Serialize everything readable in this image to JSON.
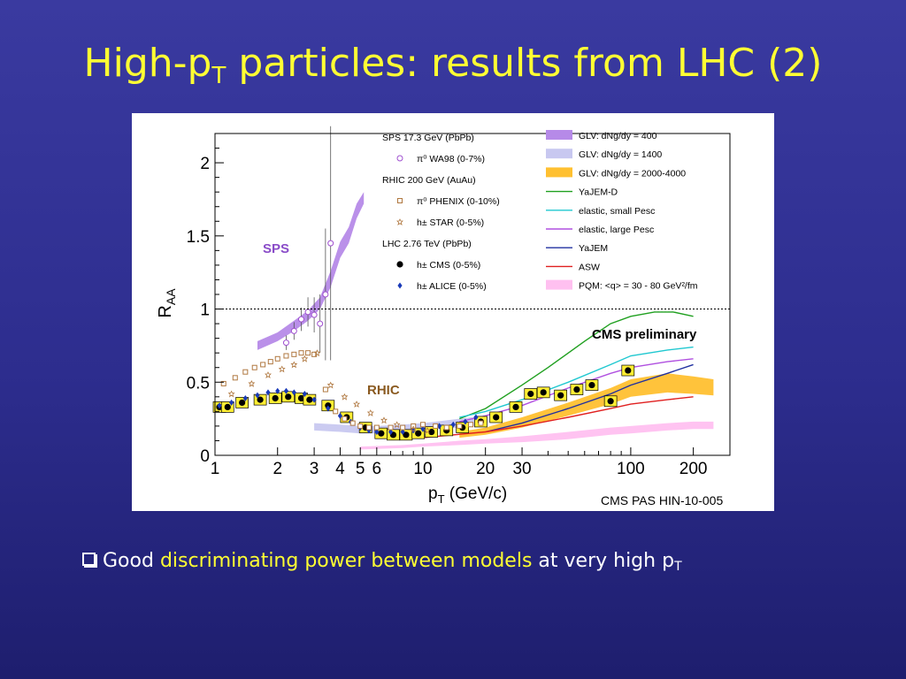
{
  "slide": {
    "title_main": "High-p",
    "title_sub": "T",
    "title_rest": " particles: results from LHC (2)",
    "bullet_prefix": "Good ",
    "bullet_highlight": "discriminating power between models",
    "bullet_suffix": " at very high p",
    "bullet_sub": "T",
    "colors": {
      "title": "#ffff33",
      "highlight": "#ffff33",
      "background": "#2d2d8e"
    }
  },
  "chart_data": {
    "type": "scatter",
    "xscale": "log",
    "xlim": [
      1,
      300
    ],
    "ylim": [
      0,
      2.2
    ],
    "xlabel": "p",
    "xlabel_sub": "T",
    "xlabel_unit": " (GeV/c)",
    "ylabel": "R",
    "ylabel_sub": "AA",
    "xticks": [
      1,
      2,
      3,
      4,
      5,
      6,
      10,
      20,
      30,
      100,
      200
    ],
    "xtick_labels": [
      "1",
      "2",
      "3",
      "4",
      "5",
      "6",
      "10",
      "20",
      "30",
      "100",
      "200"
    ],
    "yticks": [
      0,
      0.5,
      1,
      1.5,
      2
    ],
    "ytick_labels": [
      "0",
      "0.5",
      "1",
      "1.5",
      "2"
    ],
    "reference_line": 1,
    "annotations": {
      "sps": "SPS",
      "rhic": "RHIC",
      "cms_prelim": "CMS preliminary",
      "source": "CMS PAS HIN-10-005"
    },
    "legend_left": [
      {
        "kind": "header",
        "text": "SPS 17.3 GeV (PbPb)"
      },
      {
        "kind": "entry",
        "marker": "open-circle",
        "color": "#a050d0",
        "text": "π⁰  WA98 (0-7%)"
      },
      {
        "kind": "header",
        "text": "RHIC 200 GeV (AuAu)"
      },
      {
        "kind": "entry",
        "marker": "open-square",
        "color": "#b07840",
        "text": "π⁰  PHENIX (0-10%)"
      },
      {
        "kind": "entry",
        "marker": "open-star",
        "color": "#b07840",
        "text": "h±  STAR (0-5%)"
      },
      {
        "kind": "header",
        "text": "LHC 2.76 TeV (PbPb)"
      },
      {
        "kind": "entry",
        "marker": "filled-circle",
        "color": "#000000",
        "text": "h±  CMS (0-5%)"
      },
      {
        "kind": "entry",
        "marker": "diamond",
        "color": "#1a3ab8",
        "text": "h±  ALICE (0-5%)"
      }
    ],
    "legend_right": [
      {
        "kind": "band",
        "color": "#b68ae8",
        "text": "GLV: dNg/dy = 400"
      },
      {
        "kind": "band",
        "color": "#c8c8f0",
        "text": "GLV: dNg/dy = 1400"
      },
      {
        "kind": "band",
        "color": "#ffc030",
        "text": "GLV: dNg/dy = 2000-4000"
      },
      {
        "kind": "line",
        "color": "#20a020",
        "text": "YaJEM-D"
      },
      {
        "kind": "line",
        "color": "#20c8d0",
        "text": "elastic, small Pesc"
      },
      {
        "kind": "line",
        "color": "#b050e0",
        "text": "elastic, large Pesc"
      },
      {
        "kind": "line",
        "color": "#2030a0",
        "text": "YaJEM"
      },
      {
        "kind": "line",
        "color": "#e02020",
        "text": "ASW"
      },
      {
        "kind": "band",
        "color": "#ffc0f0",
        "text": "PQM: <q> = 30 - 80 GeV²/fm"
      }
    ],
    "series": [
      {
        "name": "h± CMS (0-5%)",
        "marker": "filled-circle",
        "color": "#000000",
        "x": [
          1.05,
          1.15,
          1.35,
          1.65,
          1.95,
          2.25,
          2.6,
          2.85,
          3.5,
          4.3,
          5.3,
          6.3,
          7.2,
          8.3,
          9.5,
          11.0,
          13.0,
          15.5,
          19.0,
          22.5,
          28.0,
          33.0,
          38.0,
          46.0,
          55.0,
          65.0,
          80.0,
          97.0
        ],
        "y": [
          0.33,
          0.33,
          0.36,
          0.38,
          0.39,
          0.4,
          0.39,
          0.38,
          0.34,
          0.26,
          0.19,
          0.15,
          0.14,
          0.14,
          0.15,
          0.16,
          0.17,
          0.19,
          0.23,
          0.26,
          0.33,
          0.42,
          0.43,
          0.41,
          0.45,
          0.48,
          0.37,
          0.58
        ]
      },
      {
        "name": "h± ALICE (0-5%)",
        "marker": "diamond",
        "color": "#1a3ab8",
        "x": [
          1.05,
          1.2,
          1.4,
          1.6,
          1.8,
          2.0,
          2.2,
          2.4,
          2.7,
          3.0,
          3.5,
          4.0,
          4.5,
          5.0,
          5.5,
          6.0,
          7.0,
          8.0,
          9.0,
          10.0,
          12.0,
          14.0,
          16.0,
          18.0
        ],
        "y": [
          0.34,
          0.36,
          0.39,
          0.41,
          0.43,
          0.44,
          0.44,
          0.43,
          0.42,
          0.38,
          0.32,
          0.27,
          0.23,
          0.19,
          0.17,
          0.16,
          0.16,
          0.16,
          0.17,
          0.18,
          0.2,
          0.21,
          0.23,
          0.26
        ]
      },
      {
        "name": "π⁰ WA98 (0-7%)",
        "marker": "open-circle",
        "color": "#a050d0",
        "x": [
          2.2,
          2.4,
          2.6,
          2.8,
          3.0,
          3.2,
          3.4,
          3.6
        ],
        "y": [
          0.77,
          0.85,
          0.93,
          0.98,
          0.96,
          0.9,
          1.1,
          1.45
        ],
        "yerr": [
          0.05,
          0.06,
          0.08,
          0.1,
          0.12,
          0.2,
          0.45,
          0.8
        ]
      },
      {
        "name": "π⁰ PHENIX (0-10%)",
        "marker": "open-square",
        "color": "#b07840",
        "x": [
          1.1,
          1.25,
          1.4,
          1.55,
          1.7,
          1.85,
          2.0,
          2.2,
          2.4,
          2.6,
          2.8,
          3.0,
          3.4,
          3.8,
          4.2,
          4.6,
          5.0,
          5.5,
          6.0,
          7.0,
          8.0,
          9.0,
          10.0,
          11.5,
          13.0,
          15.0,
          17.0,
          19.0
        ],
        "y": [
          0.49,
          0.53,
          0.57,
          0.6,
          0.62,
          0.64,
          0.66,
          0.68,
          0.69,
          0.7,
          0.7,
          0.69,
          0.45,
          0.3,
          0.25,
          0.22,
          0.2,
          0.19,
          0.19,
          0.19,
          0.19,
          0.2,
          0.21,
          0.2,
          0.19,
          0.2,
          0.21,
          0.22
        ]
      },
      {
        "name": "h± STAR (0-5%)",
        "marker": "open-star",
        "color": "#b07840",
        "x": [
          1.2,
          1.5,
          1.8,
          2.1,
          2.4,
          2.7,
          3.1,
          3.6,
          4.2,
          4.8,
          5.6,
          6.5,
          7.5,
          9.0,
          10.5
        ],
        "y": [
          0.42,
          0.49,
          0.55,
          0.59,
          0.62,
          0.66,
          0.7,
          0.48,
          0.4,
          0.35,
          0.29,
          0.24,
          0.21,
          0.18,
          0.17
        ]
      }
    ],
    "bands": [
      {
        "name": "GLV: dNg/dy = 400",
        "color": "#b68ae8",
        "x": [
          1.6,
          2.0,
          2.4,
          2.8,
          3.2,
          3.6,
          4.0,
          4.4,
          4.8,
          5.2
        ],
        "ylow": [
          0.72,
          0.78,
          0.85,
          0.92,
          1.0,
          1.15,
          1.35,
          1.45,
          1.62,
          1.72
        ],
        "yhigh": [
          0.78,
          0.84,
          0.92,
          0.99,
          1.08,
          1.26,
          1.46,
          1.56,
          1.72,
          1.8
        ]
      },
      {
        "name": "GLV: dNg/dy = 1400",
        "color": "#c8c8f0",
        "x": [
          3,
          4,
          5,
          6,
          8,
          10,
          15,
          20
        ],
        "ylow": [
          0.17,
          0.16,
          0.15,
          0.15,
          0.16,
          0.17,
          0.19,
          0.21
        ],
        "yhigh": [
          0.22,
          0.21,
          0.2,
          0.2,
          0.21,
          0.22,
          0.25,
          0.27
        ]
      },
      {
        "name": "GLV: dNg/dy = 2000-4000",
        "color": "#ffc030",
        "x": [
          15,
          20,
          30,
          50,
          80,
          100,
          150,
          200,
          250
        ],
        "ylow": [
          0.12,
          0.14,
          0.19,
          0.27,
          0.35,
          0.4,
          0.43,
          0.42,
          0.41
        ],
        "yhigh": [
          0.16,
          0.19,
          0.26,
          0.36,
          0.46,
          0.52,
          0.56,
          0.54,
          0.52
        ]
      },
      {
        "name": "PQM: <q> = 30 - 80 GeV²/fm",
        "color": "#ffc0f0",
        "x": [
          5,
          8,
          10,
          15,
          20,
          30,
          50,
          80,
          100,
          150,
          200,
          250
        ],
        "ylow": [
          0.04,
          0.05,
          0.06,
          0.07,
          0.08,
          0.09,
          0.11,
          0.14,
          0.15,
          0.17,
          0.18,
          0.18
        ],
        "yhigh": [
          0.06,
          0.07,
          0.08,
          0.1,
          0.11,
          0.13,
          0.16,
          0.19,
          0.2,
          0.22,
          0.23,
          0.23
        ]
      }
    ],
    "lines": [
      {
        "name": "YaJEM-D",
        "color": "#20a020",
        "x": [
          15,
          20,
          30,
          40,
          60,
          80,
          100,
          130,
          160,
          200
        ],
        "y": [
          0.25,
          0.32,
          0.48,
          0.6,
          0.78,
          0.9,
          0.95,
          0.98,
          0.98,
          0.95
        ]
      },
      {
        "name": "elastic, small Pesc",
        "color": "#20c8d0",
        "x": [
          15,
          20,
          30,
          50,
          80,
          100,
          150,
          200
        ],
        "y": [
          0.26,
          0.3,
          0.38,
          0.5,
          0.62,
          0.68,
          0.72,
          0.74
        ]
      },
      {
        "name": "elastic, large Pesc",
        "color": "#b050e0",
        "x": [
          15,
          20,
          30,
          50,
          80,
          100,
          150,
          200
        ],
        "y": [
          0.23,
          0.27,
          0.34,
          0.46,
          0.56,
          0.6,
          0.64,
          0.66
        ]
      },
      {
        "name": "YaJEM",
        "color": "#2030a0",
        "x": [
          20,
          30,
          50,
          80,
          100,
          150,
          200
        ],
        "y": [
          0.16,
          0.22,
          0.32,
          0.42,
          0.48,
          0.56,
          0.62
        ]
      },
      {
        "name": "ASW",
        "color": "#e02020",
        "x": [
          10,
          20,
          30,
          50,
          80,
          100,
          150,
          200
        ],
        "y": [
          0.12,
          0.16,
          0.2,
          0.26,
          0.32,
          0.35,
          0.38,
          0.4
        ]
      }
    ]
  }
}
